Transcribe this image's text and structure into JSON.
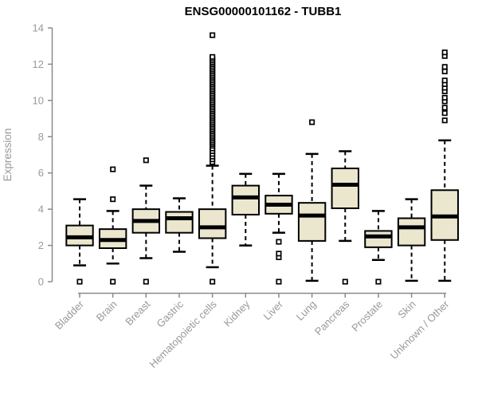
{
  "chart_data": {
    "type": "boxplot",
    "title": "ENSG00000101162 - TUBB1",
    "ylabel": "Expression",
    "xlabel": "",
    "ylim": [
      0,
      14
    ],
    "yticks": [
      0,
      2,
      4,
      6,
      8,
      10,
      12,
      14
    ],
    "grid": false,
    "legend": null,
    "categories": [
      "Bladder",
      "Brain",
      "Breast",
      "Gastric",
      "Hematopoietic cells",
      "Kidney",
      "Liver",
      "Lung",
      "Pancreas",
      "Prostate",
      "Skin",
      "Unknown / Other"
    ],
    "series": [
      {
        "category": "Bladder",
        "whisker_low": 0.9,
        "q1": 2.0,
        "median": 2.45,
        "q3": 3.1,
        "whisker_high": 4.55,
        "outliers": [
          0
        ]
      },
      {
        "category": "Brain",
        "whisker_low": 1.0,
        "q1": 1.85,
        "median": 2.3,
        "q3": 2.9,
        "whisker_high": 3.9,
        "outliers": [
          0,
          4.55,
          6.2
        ]
      },
      {
        "category": "Breast",
        "whisker_low": 1.3,
        "q1": 2.7,
        "median": 3.35,
        "q3": 4.0,
        "whisker_high": 5.3,
        "outliers": [
          0,
          6.7
        ]
      },
      {
        "category": "Gastric",
        "whisker_low": 1.65,
        "q1": 2.7,
        "median": 3.5,
        "q3": 3.85,
        "whisker_high": 4.6,
        "outliers": []
      },
      {
        "category": "Hematopoietic cells",
        "whisker_low": 0.8,
        "q1": 2.4,
        "median": 3.0,
        "q3": 4.0,
        "whisker_high": 6.4,
        "outliers": [
          0,
          6.6,
          6.75,
          6.9,
          7.05,
          7.2,
          7.35,
          7.5,
          7.6,
          7.7,
          7.8,
          7.9,
          8.0,
          8.1,
          8.2,
          8.3,
          8.4,
          8.5,
          8.6,
          8.7,
          8.8,
          8.9,
          9.0,
          9.1,
          9.2,
          9.3,
          9.4,
          9.5,
          9.6,
          9.7,
          9.8,
          9.9,
          10.0,
          10.1,
          10.2,
          10.3,
          10.4,
          10.5,
          10.6,
          10.7,
          10.8,
          10.9,
          11.0,
          11.1,
          11.2,
          11.3,
          11.4,
          11.5,
          11.6,
          11.7,
          11.8,
          11.9,
          12.0,
          12.1,
          12.2,
          12.3,
          12.4,
          13.6
        ]
      },
      {
        "category": "Kidney",
        "whisker_low": 2.0,
        "q1": 3.7,
        "median": 4.65,
        "q3": 5.3,
        "whisker_high": 5.95,
        "outliers": []
      },
      {
        "category": "Liver",
        "whisker_low": 2.7,
        "q1": 3.75,
        "median": 4.25,
        "q3": 4.75,
        "whisker_high": 5.95,
        "outliers": [
          0,
          1.35,
          1.55,
          2.2
        ]
      },
      {
        "category": "Lung",
        "whisker_low": 0.05,
        "q1": 2.25,
        "median": 3.65,
        "q3": 4.35,
        "whisker_high": 7.05,
        "outliers": [
          8.8
        ]
      },
      {
        "category": "Pancreas",
        "whisker_low": 2.25,
        "q1": 4.05,
        "median": 5.35,
        "q3": 6.25,
        "whisker_high": 7.2,
        "outliers": [
          0
        ]
      },
      {
        "category": "Prostate",
        "whisker_low": 1.2,
        "q1": 1.9,
        "median": 2.5,
        "q3": 2.8,
        "whisker_high": 3.9,
        "outliers": [
          0
        ]
      },
      {
        "category": "Skin",
        "whisker_low": 0.05,
        "q1": 2.0,
        "median": 3.0,
        "q3": 3.5,
        "whisker_high": 4.55,
        "outliers": []
      },
      {
        "category": "Unknown / Other",
        "whisker_low": 0.05,
        "q1": 2.3,
        "median": 3.6,
        "q3": 5.05,
        "whisker_high": 7.8,
        "outliers": [
          8.9,
          9.3,
          9.6,
          9.95,
          10.15,
          10.5,
          10.7,
          10.9,
          11.1,
          11.6,
          11.85,
          12.45,
          12.65
        ]
      }
    ],
    "colors": {
      "box_fill": "#EBE6CE",
      "box_stroke": "#000000",
      "median": "#000000",
      "whisker": "#000000",
      "axis": "#8a8a8a",
      "tick_text": "#999999",
      "title_text": "#000000",
      "background": "#ffffff"
    }
  }
}
